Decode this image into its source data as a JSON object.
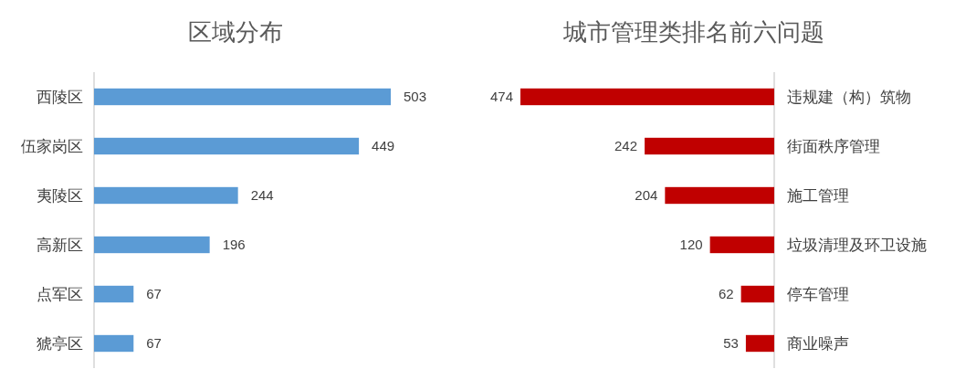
{
  "chart_data": [
    {
      "type": "bar",
      "orientation": "horizontal",
      "title": "区域分布",
      "categories": [
        "西陵区",
        "伍家岗区",
        "夷陵区",
        "高新区",
        "点军区",
        "猇亭区"
      ],
      "values": [
        503,
        449,
        244,
        196,
        67,
        67
      ],
      "color": "#5b9bd5",
      "data_labels": true
    },
    {
      "type": "bar",
      "orientation": "horizontal",
      "title": "城市管理类排名前六问题",
      "categories": [
        "违规建（构）筑物",
        "街面秩序管理",
        "施工管理",
        "垃圾清理及环卫设施",
        "停车管理",
        "商业噪声"
      ],
      "values": [
        474,
        242,
        204,
        120,
        62,
        53
      ],
      "color": "#c00000",
      "data_labels": true
    }
  ]
}
